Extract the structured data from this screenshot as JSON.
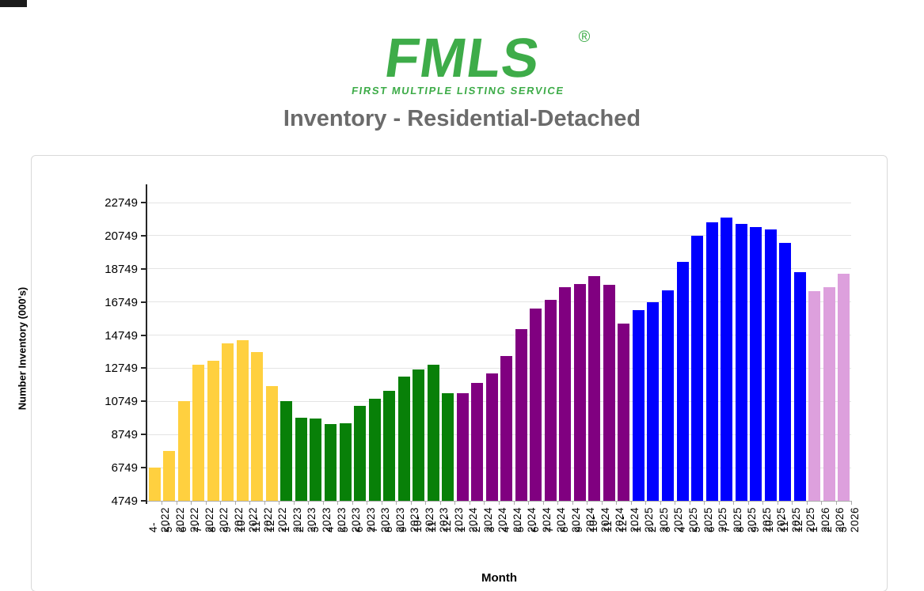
{
  "logo": {
    "text": "FMLS",
    "registered": "®",
    "subtitle": "FIRST MULTIPLE LISTING SERVICE",
    "color": "#3EAC49"
  },
  "title": "Inventory - Residential-Detached",
  "chart_data": {
    "type": "bar",
    "title": "Inventory - Residential-Detached",
    "xlabel": "Month",
    "ylabel": "Number Inventory (000's)",
    "grid": true,
    "legend": false,
    "yticks": [
      4749,
      6749,
      8749,
      10749,
      12749,
      14749,
      16749,
      18749,
      20749,
      22749
    ],
    "ylim": [
      4749,
      23849
    ],
    "categories": [
      "4-2022",
      "5-2022",
      "6-2022",
      "7-2022",
      "8-2022",
      "9-2022",
      "10-2022",
      "11-2022",
      "12-2022",
      "1-2023",
      "2-2023",
      "3-2023",
      "4-2023",
      "5-2023",
      "6-2023",
      "7-2023",
      "8-2023",
      "9-2023",
      "10-2023",
      "11-2023",
      "12-2023",
      "1-2024",
      "2-2024",
      "3-2024",
      "4-2024",
      "5-2024",
      "6-2024",
      "7-2024",
      "8-2024",
      "9-2024",
      "10-2024",
      "11-2024",
      "12-2024",
      "1-2025",
      "2-2025",
      "3-2025",
      "4-2025",
      "5-2025",
      "6-2025",
      "7-2025",
      "8-2025",
      "9-2025",
      "10-2025",
      "11-2025",
      "12-2025",
      "1-2026",
      "2-2026",
      "3-2026"
    ],
    "values": [
      6750,
      7750,
      10750,
      12950,
      13200,
      14250,
      14450,
      13750,
      11650,
      10750,
      9750,
      9700,
      9400,
      9450,
      10500,
      10900,
      11400,
      12250,
      12700,
      12950,
      11250,
      11250,
      11850,
      12450,
      13500,
      15100,
      16350,
      16900,
      17650,
      17850,
      18300,
      17800,
      15450,
      16250,
      16750,
      17450,
      19150,
      20750,
      21550,
      21850,
      21450,
      21250,
      21150,
      20300,
      18550,
      17400,
      17650,
      18450
    ],
    "colors_by_year": {
      "2022": "#FFD03F",
      "2023": "#088008",
      "2024": "#800080",
      "2025": "#0000FF",
      "2026": "#DDA0DD"
    }
  }
}
